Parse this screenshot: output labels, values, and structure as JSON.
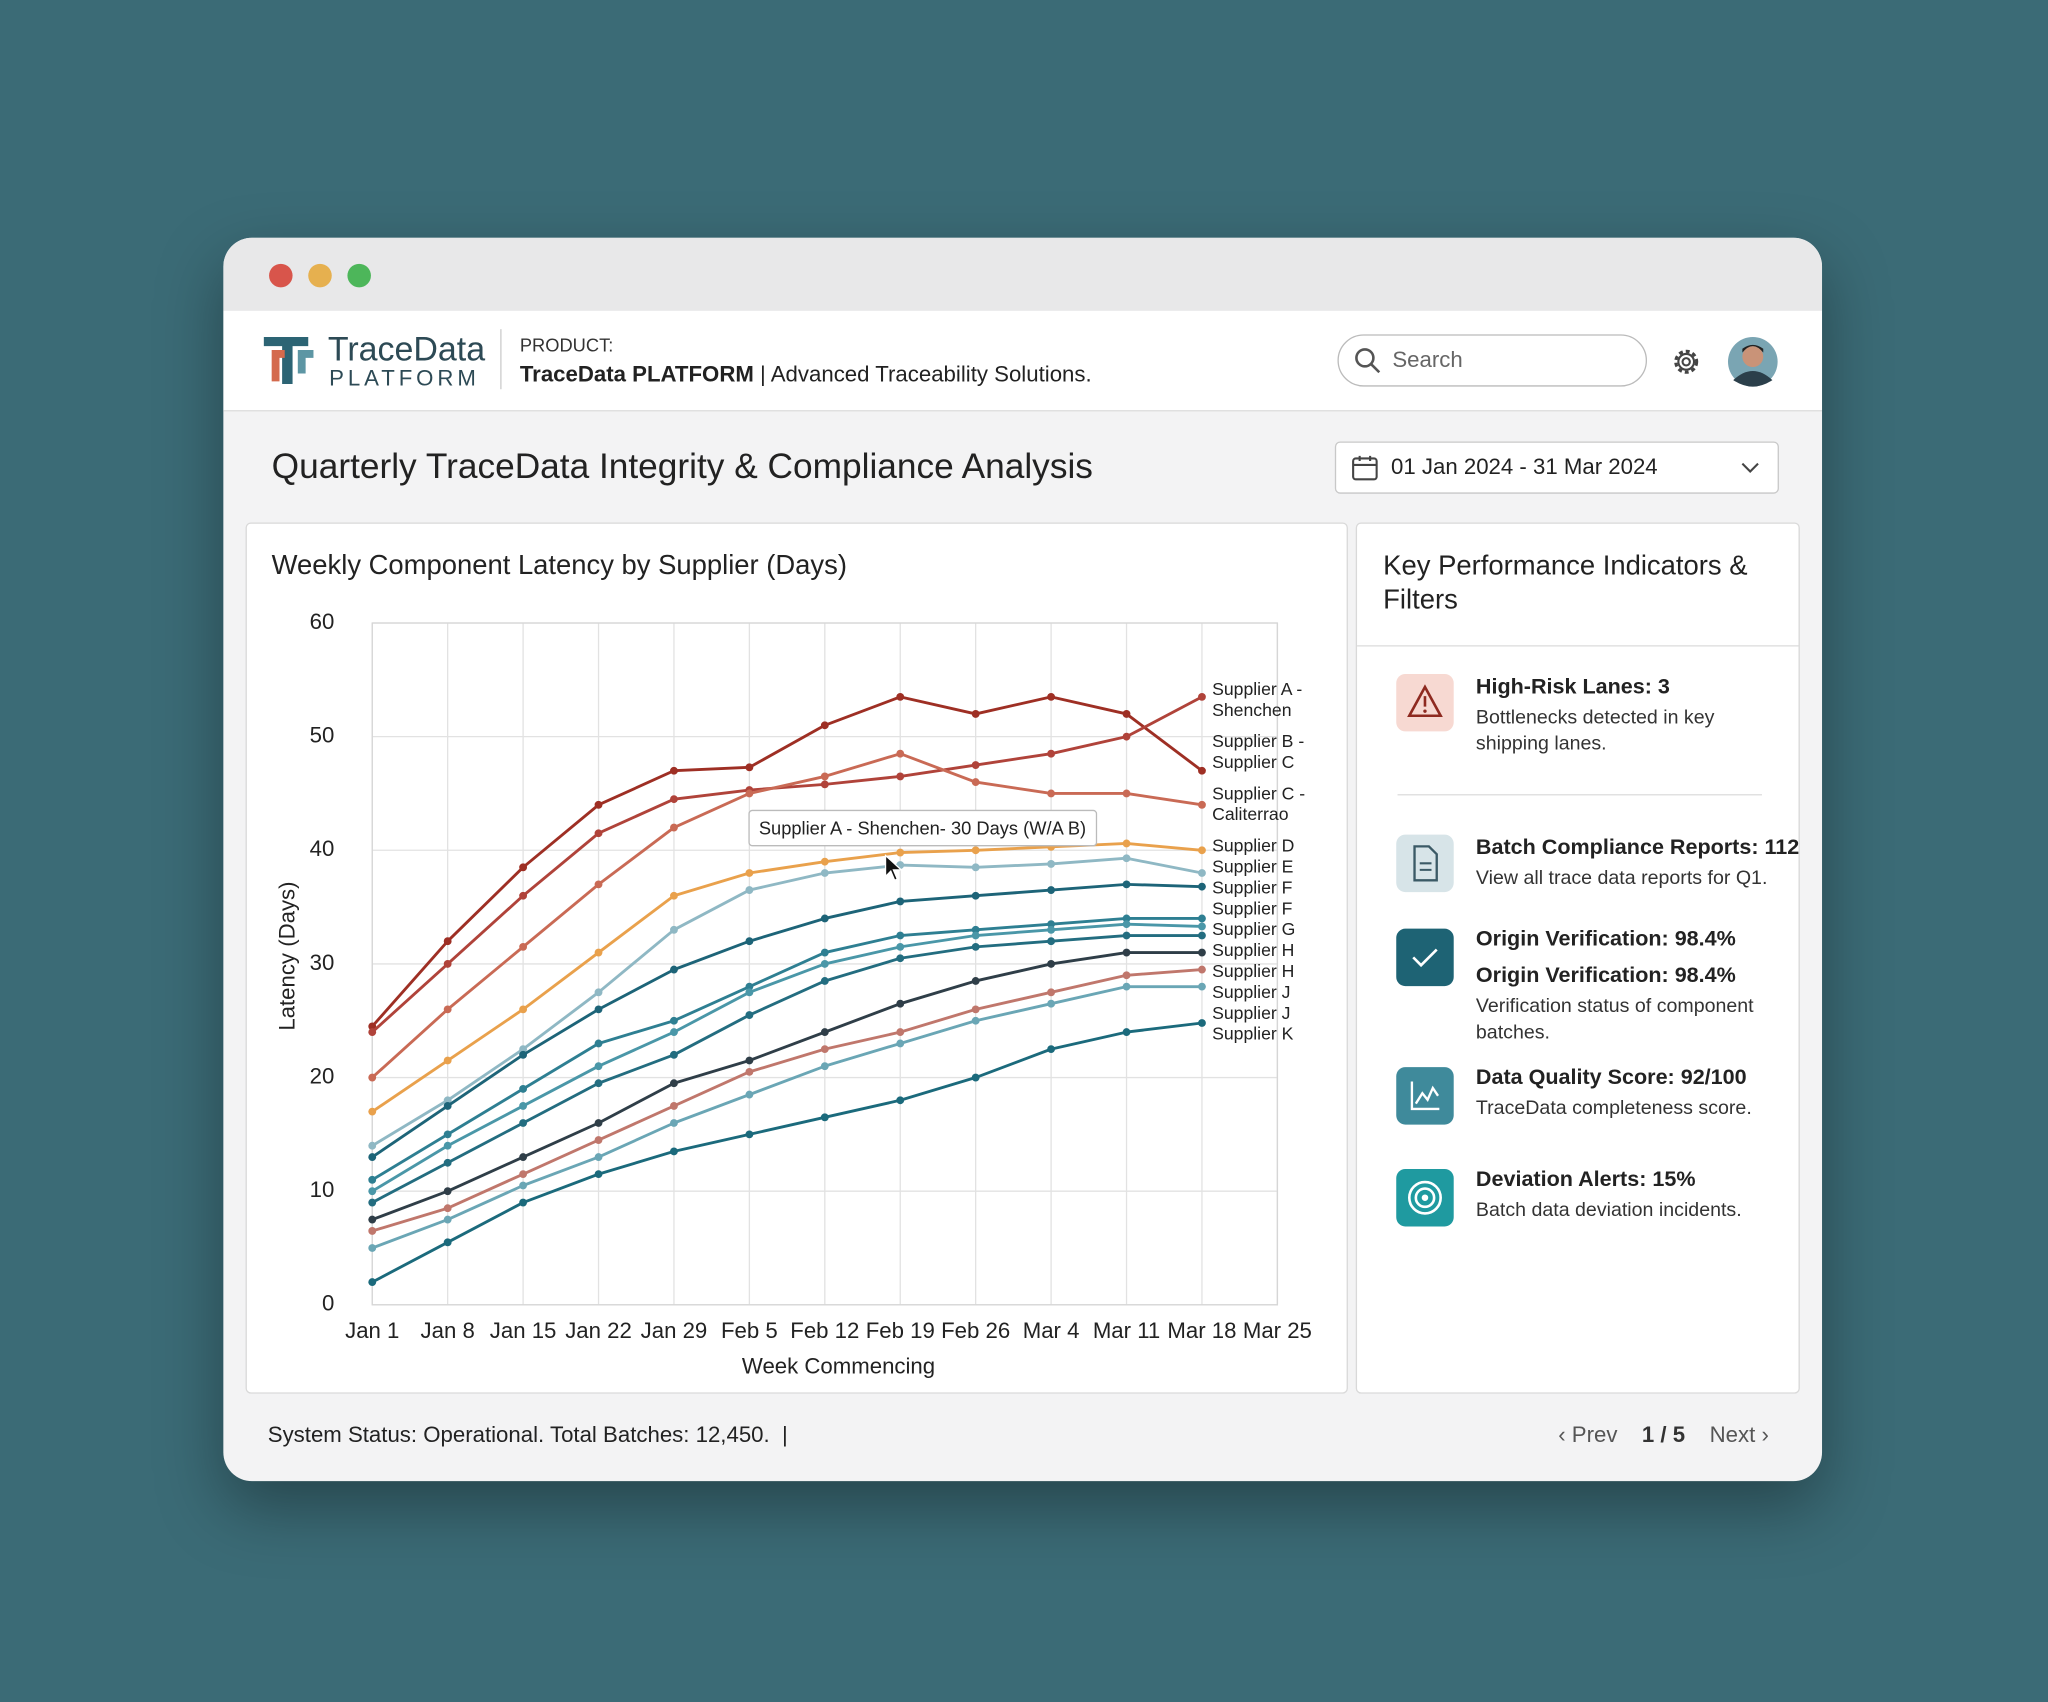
{
  "header": {
    "logo_name": "TraceData",
    "logo_sub": "PLATFORM",
    "product_label": "PRODUCT:",
    "product_name": "TraceData PLATFORM",
    "product_tagline": "| Advanced Traceability Solutions.",
    "search_placeholder": "Search"
  },
  "page_title": "Quarterly TraceData Integrity & Compliance Analysis",
  "date_range": "01 Jan 2024 - 31 Mar 2024",
  "chart_data": {
    "type": "line",
    "title": "Weekly Component Latency by Supplier (Days)",
    "x_label": "Week Commencing",
    "y_label": "Latency (Days)",
    "categories": [
      "Jan 1",
      "Jan 8",
      "Jan 15",
      "Jan 22",
      "Jan 29",
      "Feb 5",
      "Feb 12",
      "Feb 19",
      "Feb 26",
      "Mar 4",
      "Mar 11",
      "Mar 18",
      "Mar 25"
    ],
    "ylim": [
      0,
      60
    ],
    "yticks": [
      0,
      10,
      20,
      30,
      40,
      50,
      60
    ],
    "grid": true,
    "annotation": "Supplier A - Shenchen- 30 Days (W/A B)",
    "series": [
      {
        "name": "Supplier A - Shenchen",
        "color": "#9e2f24",
        "values": [
          24.5,
          32,
          38.5,
          44,
          47,
          47.3,
          51,
          53.5,
          52,
          53.5,
          52,
          47,
          null
        ]
      },
      {
        "name": "Supplier B - Supplier C",
        "color": "#b0433a",
        "values": [
          24,
          30,
          36,
          41.5,
          44.5,
          45.3,
          45.8,
          46.5,
          47.5,
          48.5,
          50,
          53.5,
          null
        ]
      },
      {
        "name": "Supplier C - Caliterrao",
        "color": "#c96a55",
        "values": [
          20,
          26,
          31.5,
          37,
          42,
          45,
          46.5,
          48.5,
          46,
          45,
          45,
          44,
          null
        ]
      },
      {
        "name": "Supplier D",
        "color": "#e9a14c",
        "values": [
          17,
          21.5,
          26,
          31,
          36,
          38,
          39,
          39.8,
          40,
          40.3,
          40.6,
          40,
          null
        ]
      },
      {
        "name": "Supplier E",
        "color": "#8fb8c4",
        "values": [
          14,
          18,
          22.5,
          27.5,
          33,
          36.5,
          38,
          38.7,
          38.5,
          38.8,
          39.3,
          38,
          null
        ]
      },
      {
        "name": "Supplier F",
        "color": "#1d6478",
        "values": [
          13,
          17.5,
          22,
          26,
          29.5,
          32,
          34,
          35.5,
          36,
          36.5,
          37,
          36.8,
          null
        ]
      },
      {
        "name": "Supplier F",
        "color": "#2e7f92",
        "values": [
          11,
          15,
          19,
          23,
          25,
          28,
          31,
          32.5,
          33,
          33.5,
          34,
          34,
          null
        ]
      },
      {
        "name": "Supplier G",
        "color": "#4a97a8",
        "values": [
          10,
          14,
          17.5,
          21,
          24,
          27.5,
          30,
          31.5,
          32.5,
          33,
          33.5,
          33.3,
          null
        ]
      },
      {
        "name": "Supplier H",
        "color": "#236d80",
        "values": [
          9,
          12.5,
          16,
          19.5,
          22,
          25.5,
          28.5,
          30.5,
          31.5,
          32,
          32.5,
          32.5,
          null
        ]
      },
      {
        "name": "Supplier H",
        "color": "#2f3e48",
        "values": [
          7.5,
          10,
          13,
          16,
          19.5,
          21.5,
          24,
          26.5,
          28.5,
          30,
          31,
          31,
          null
        ]
      },
      {
        "name": "Supplier J",
        "color": "#c0776c",
        "values": [
          6.5,
          8.5,
          11.5,
          14.5,
          17.5,
          20.5,
          22.5,
          24,
          26,
          27.5,
          29,
          29.5,
          null
        ]
      },
      {
        "name": "Supplier J",
        "color": "#6aa6b5",
        "values": [
          5,
          7.5,
          10.5,
          13,
          16,
          18.5,
          21,
          23,
          25,
          26.5,
          28,
          28,
          null
        ]
      },
      {
        "name": "Supplier K",
        "color": "#1b6a7c",
        "values": [
          2,
          5.5,
          9,
          11.5,
          13.5,
          15,
          16.5,
          18,
          20,
          22.5,
          24,
          24.8,
          null
        ]
      }
    ]
  },
  "kpi": {
    "title": "Key Performance Indicators & Filters",
    "items": [
      {
        "lines": [
          "High-Risk Lanes: 3"
        ],
        "description": "Bottlenecks detected in key shipping lanes."
      },
      {
        "lines": [
          "Batch Compliance Reports: 112"
        ],
        "description": "View all trace data reports for Q1."
      },
      {
        "lines": [
          "Origin Verification: 98.4%",
          "Origin Verification: 98.4%"
        ],
        "description": "Verification status of component batches."
      },
      {
        "lines": [
          "Data Quality Score: 92/100"
        ],
        "description": "TraceData completeness score."
      },
      {
        "lines": [
          "Deviation Alerts: 15%"
        ],
        "description": "Batch data deviation incidents."
      }
    ]
  },
  "footer": {
    "status": "System Status: Operational. Total Batches: 12,450.",
    "prev": "Prev",
    "page": "1 / 5",
    "next": "Next"
  }
}
